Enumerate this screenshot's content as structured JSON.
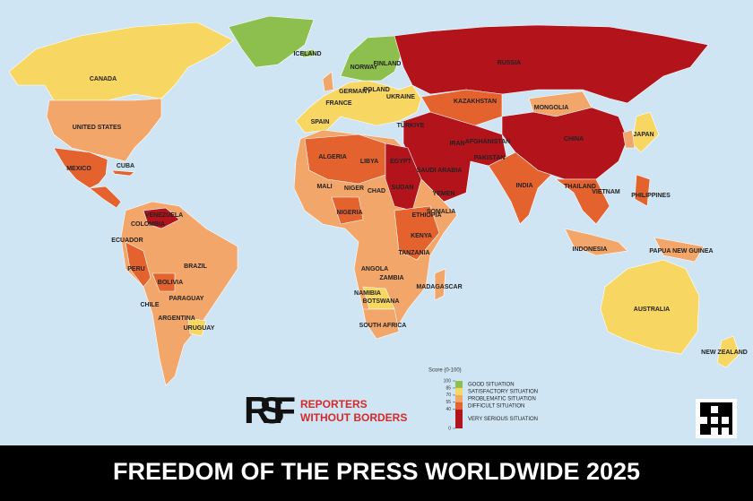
{
  "title": "FREEDOM OF THE PRESS WORLDWIDE 2025",
  "logo": {
    "mark": "RSF",
    "line1": "REPORTERS",
    "line2": "WITHOUT BORDERS"
  },
  "legend": {
    "scale_label": "Score (0-100)",
    "ticks": [
      100,
      85,
      70,
      55,
      40,
      0
    ],
    "categories": [
      {
        "label": "GOOD SITUATION",
        "color": "#8dbf4e"
      },
      {
        "label": "SATISFACTORY SITUATION",
        "color": "#f8d662"
      },
      {
        "label": "PROBLEMATIC SITUATION",
        "color": "#f2a66a"
      },
      {
        "label": "DIFFICULT SITUATION",
        "color": "#e4622e"
      },
      {
        "label": "VERY SERIOUS SITUATION",
        "color": "#b3141c"
      }
    ]
  },
  "countries": [
    "CANADA",
    "UNITED STATES",
    "MEXICO",
    "CUBA",
    "BRAZIL",
    "ARGENTINA",
    "CHILE",
    "PERU",
    "BOLIVIA",
    "COLOMBIA",
    "VENEZUELA",
    "ECUADOR",
    "PARAGUAY",
    "URUGUAY",
    "RUSSIA",
    "CHINA",
    "INDIA",
    "MONGOLIA",
    "KAZAKHSTAN",
    "IRAN",
    "SAUDI ARABIA",
    "EGYPT",
    "LIBYA",
    "ALGERIA",
    "NIGER",
    "MALI",
    "CHAD",
    "SUDAN",
    "NIGERIA",
    "ETHIOPIA",
    "KENYA",
    "TANZANIA",
    "ANGOLA",
    "ZAMBIA",
    "NAMIBIA",
    "BOTSWANA",
    "SOUTH AFRICA",
    "MADAGASCAR",
    "AUSTRALIA",
    "NEW ZEALAND",
    "INDONESIA",
    "PHILIPPINES",
    "JAPAN",
    "ICELAND",
    "NORWAY",
    "FINLAND",
    "UKRAINE",
    "POLAND",
    "FRANCE",
    "SPAIN",
    "GERMANY",
    "TÜRKIYE",
    "PAKISTAN",
    "AFGHANISTAN",
    "VIETNAM",
    "THAILAND",
    "PAPUA NEW GUINEA",
    "YEMEN",
    "SOMALIA"
  ]
}
